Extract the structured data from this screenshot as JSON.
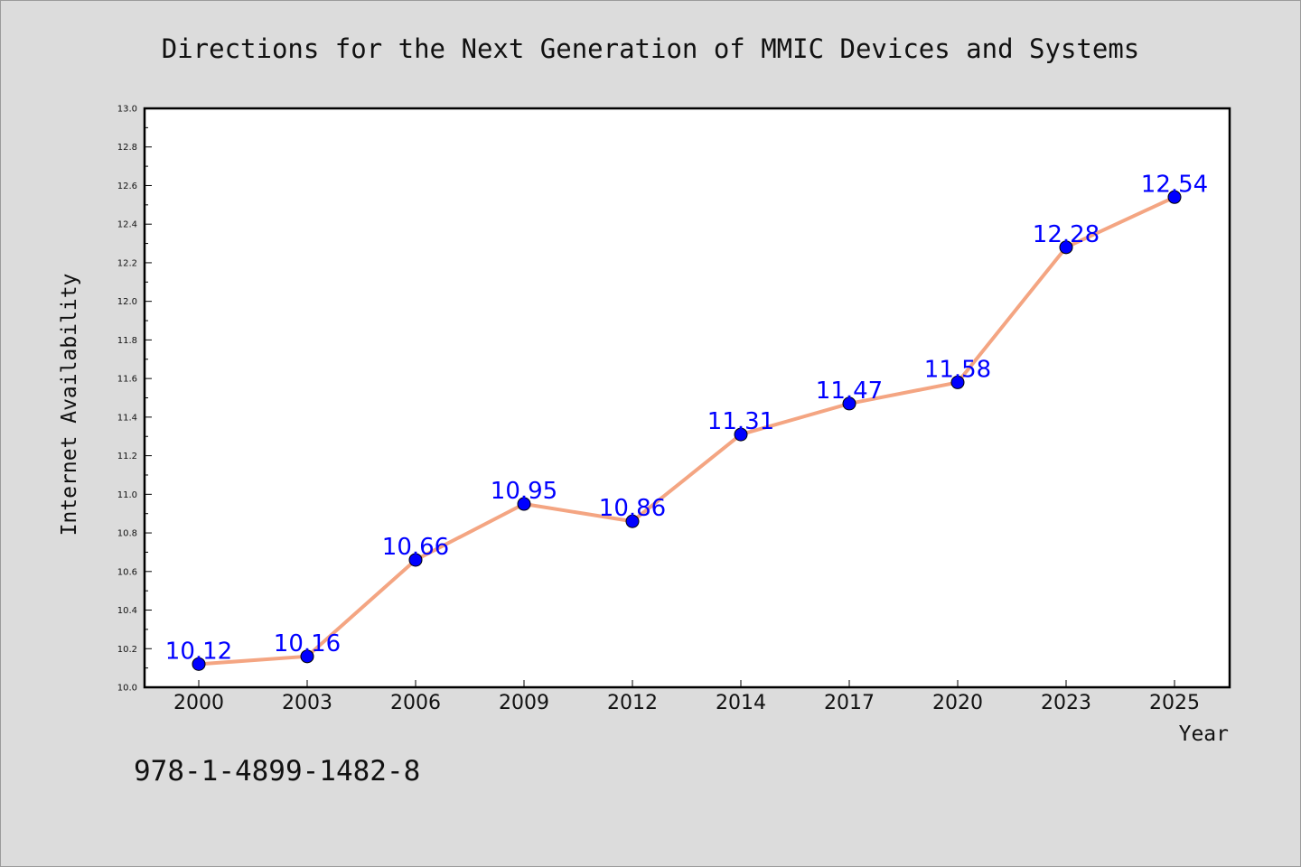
{
  "chart_data": {
    "type": "line",
    "title": "Directions for the Next Generation of MMIC Devices and Systems",
    "xlabel": "Year",
    "ylabel": "Internet Availability",
    "categories": [
      "2000",
      "2003",
      "2006",
      "2009",
      "2012",
      "2014",
      "2017",
      "2020",
      "2023",
      "2025"
    ],
    "values": [
      10.12,
      10.16,
      10.66,
      10.95,
      10.86,
      11.31,
      11.47,
      11.58,
      12.28,
      12.54
    ],
    "data_labels": [
      "10.12",
      "10.16",
      "10.66",
      "10.95",
      "10.86",
      "11.31",
      "11.47",
      "11.58",
      "12.28",
      "12.54"
    ],
    "ylim": [
      10.0,
      13.0
    ],
    "yticks": [
      "10.0",
      "10.2",
      "10.4",
      "10.6",
      "10.8",
      "11.0",
      "11.2",
      "11.4",
      "11.6",
      "11.8",
      "12.0",
      "12.2",
      "12.4",
      "12.6",
      "12.8",
      "13.0"
    ],
    "grid": false,
    "line_color": "#f4a582",
    "marker_color": "#0000ff",
    "label_color": "#0000ff"
  },
  "footer": {
    "note": "978-1-4899-1482-8"
  }
}
